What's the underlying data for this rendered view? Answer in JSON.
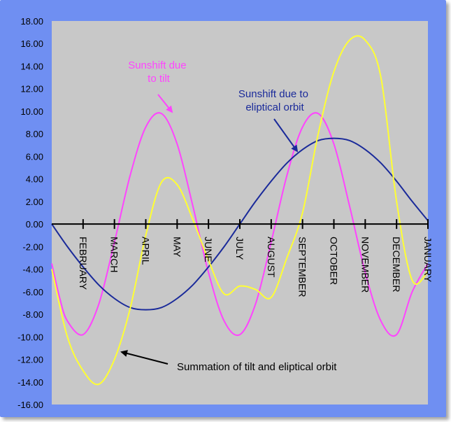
{
  "chart_data": {
    "type": "line",
    "title": "",
    "xlabel": "",
    "ylabel": "",
    "ylim": [
      -16,
      18
    ],
    "y_ticks": [
      "18.00",
      "16.00",
      "14.00",
      "12.00",
      "10.00",
      "8.00",
      "6.00",
      "4.00",
      "2.00",
      "0.00",
      "-2.00",
      "-4.00",
      "-6.00",
      "-8.00",
      "-10.00",
      "-12.00",
      "-14.00",
      "-16.00"
    ],
    "x_axis": {
      "min": 0,
      "max": 12
    },
    "categories": [
      "FEBRUARY",
      "MARCH",
      "APRIL",
      "MAY",
      "JUNE",
      "JULY",
      "AUGUST",
      "SEPTEMBER",
      "OCTOBER",
      "NOVEMBER",
      "DECEMBER",
      "JANUARY"
    ],
    "category_positions": [
      1,
      2,
      3,
      4,
      5,
      6,
      7,
      8,
      9,
      10,
      11,
      12
    ],
    "grid": false,
    "legend": "none",
    "plot_background": "#c8c8c8",
    "series": [
      {
        "name": "Sunshift due to tilt",
        "color": "#ff44ff",
        "x": [
          0,
          0.25,
          0.5,
          1,
          1.5,
          2,
          2.5,
          3,
          3.5,
          4,
          4.5,
          5,
          5.5,
          6,
          6.5,
          7,
          7.5,
          8,
          8.5,
          9,
          9.5,
          10,
          10.5,
          11,
          11.5,
          12
        ],
        "values": [
          -3.5,
          -6.5,
          -8.6,
          -9.8,
          -7.1,
          -1.6,
          4.3,
          8.6,
          9.8,
          7.1,
          1.6,
          -4.3,
          -8.6,
          -9.8,
          -7.1,
          -1.6,
          4.3,
          8.6,
          9.8,
          7.1,
          1.6,
          -4.3,
          -8.6,
          -9.8,
          -6.0,
          -3.5
        ]
      },
      {
        "name": "Sunshift due to eliptical orbit",
        "color": "#1a2a9a",
        "x": [
          0,
          0.5,
          1,
          1.5,
          2,
          2.5,
          3,
          3.5,
          4,
          4.5,
          5,
          5.5,
          6,
          6.5,
          7,
          7.5,
          8,
          8.5,
          9,
          9.5,
          10,
          10.5,
          11,
          11.5,
          12
        ],
        "values": [
          0,
          -2.0,
          -3.8,
          -5.4,
          -6.6,
          -7.4,
          -7.6,
          -7.4,
          -6.6,
          -5.4,
          -3.8,
          -2.0,
          0,
          2.0,
          3.8,
          5.4,
          6.6,
          7.4,
          7.6,
          7.4,
          6.6,
          5.4,
          3.8,
          2.0,
          0.3
        ]
      },
      {
        "name": "Summation of tilt and eliptical orbit",
        "color": "#ffff33",
        "x": [
          0,
          0.5,
          1,
          1.5,
          2,
          2.5,
          3,
          3.5,
          4,
          4.5,
          5,
          5.5,
          6,
          6.5,
          7,
          7.5,
          8,
          8.5,
          9,
          9.5,
          10,
          10.5,
          11,
          11.5,
          12
        ],
        "values": [
          -4.0,
          -10.0,
          -13.0,
          -14.2,
          -12.0,
          -7.5,
          -1.0,
          3.7,
          3.5,
          0.4,
          -3.2,
          -6.2,
          -5.5,
          -5.8,
          -6.5,
          -3.0,
          1.0,
          8.0,
          13.5,
          16.3,
          16.3,
          13.0,
          2.0,
          -5.0,
          -4.2
        ]
      }
    ],
    "annotations": [
      {
        "text_lines": [
          "Sunshift due",
          "to tilt"
        ],
        "color": "#ff44ff"
      },
      {
        "text_lines": [
          "Sunshift due to",
          "eliptical orbit"
        ],
        "color": "#1a2a9a"
      },
      {
        "text_lines": [
          "Summation of tilt and eliptical orbit"
        ],
        "color": "#000000"
      }
    ]
  }
}
